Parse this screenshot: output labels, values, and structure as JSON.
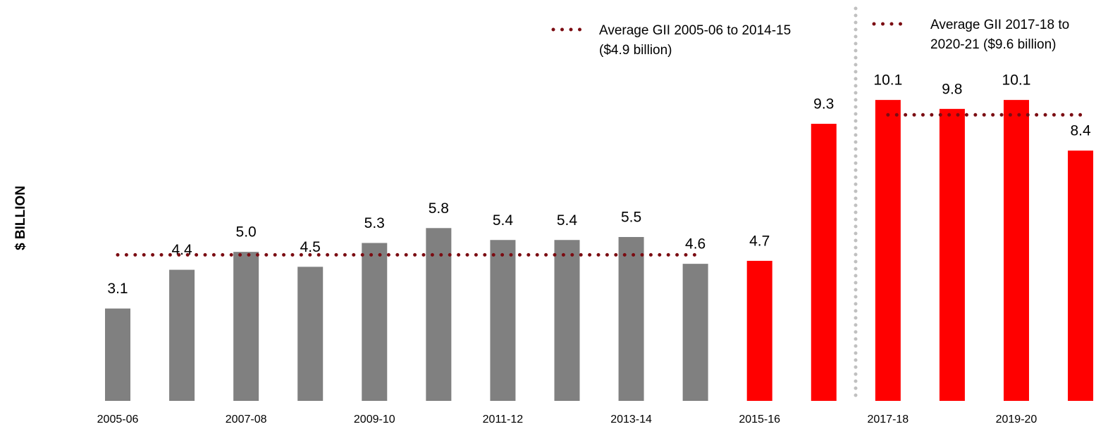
{
  "chart_data": {
    "type": "bar",
    "y_label": "$ BILLION",
    "categories": [
      "2005-06",
      null,
      "2007-08",
      null,
      "2009-10",
      null,
      "2011-12",
      null,
      "2013-14",
      null,
      "2015-16",
      null,
      "2017-18",
      null,
      "2019-20",
      null
    ],
    "values": [
      3.1,
      4.4,
      5.0,
      4.5,
      5.3,
      5.8,
      5.4,
      5.4,
      5.5,
      4.6,
      4.7,
      9.3,
      10.1,
      9.8,
      10.1,
      8.4
    ],
    "value_labels": [
      "3.1",
      "4.4",
      "5.0",
      "4.5",
      "5.3",
      "5.8",
      "5.4",
      "5.4",
      "5.5",
      "4.6",
      "4.7",
      "9.3",
      "10.1",
      "9.8",
      "10.1",
      "8.4"
    ],
    "colors": [
      "#808080",
      "#808080",
      "#808080",
      "#808080",
      "#808080",
      "#808080",
      "#808080",
      "#808080",
      "#808080",
      "#808080",
      "#ff0000",
      "#ff0000",
      "#ff0000",
      "#ff0000",
      "#ff0000",
      "#ff0000"
    ],
    "ylim": [
      0,
      11
    ],
    "average_lines": [
      {
        "name": [
          "Average GII 2005-06 to 2014-15",
          "($4.9 billion)"
        ],
        "color": "#7b0c12",
        "values": [
          4.9,
          4.9,
          4.9,
          4.9,
          4.9,
          4.9,
          4.9,
          4.9,
          4.9,
          4.9,
          null,
          null,
          null,
          null,
          null,
          null
        ]
      },
      {
        "name": [
          "Average GII 2017-18 to",
          "2020-21 ($9.6 billion)"
        ],
        "color": "#7b0c12",
        "values": [
          null,
          null,
          null,
          null,
          null,
          null,
          null,
          null,
          null,
          null,
          null,
          null,
          9.6,
          9.6,
          9.6,
          9.6
        ]
      }
    ]
  }
}
